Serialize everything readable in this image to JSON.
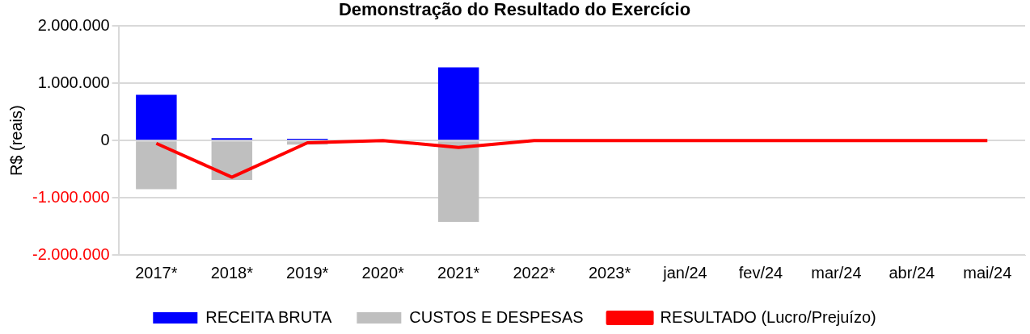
{
  "chart_data": {
    "type": "bar",
    "title": "Demonstração do Resultado do Exercício",
    "ylabel": "R$ (reais)",
    "categories": [
      "2017*",
      "2018*",
      "2019*",
      "2020*",
      "2021*",
      "2022*",
      "2023*",
      "jan/24",
      "fev/24",
      "mar/24",
      "abr/24",
      "mai/24"
    ],
    "series": [
      {
        "name": "RECEITA BRUTA",
        "color": "#0000ff",
        "values": [
          800000,
          40000,
          30000,
          0,
          1280000,
          0,
          0,
          0,
          0,
          0,
          0,
          0
        ]
      },
      {
        "name": "CUSTOS E DESPESAS",
        "color": "#bfbfbf",
        "values": [
          -850000,
          -690000,
          -70000,
          0,
          -1420000,
          0,
          0,
          0,
          0,
          0,
          0,
          0
        ]
      },
      {
        "name": "RESULTADO (Lucro/Prejuízo)",
        "type": "line",
        "color": "#ff0000",
        "values": [
          -50000,
          -640000,
          -40000,
          0,
          -120000,
          0,
          0,
          0,
          0,
          0,
          0,
          0
        ]
      }
    ],
    "stacked": true,
    "ylim": [
      -2000000,
      2000000
    ],
    "yticks": [
      {
        "value": -2000000,
        "label": "-2.000.000"
      },
      {
        "value": -1000000,
        "label": "-1.000.000"
      },
      {
        "value": 0,
        "label": "0"
      },
      {
        "value": 1000000,
        "label": "1.000.000"
      },
      {
        "value": 2000000,
        "label": "2.000.000"
      }
    ],
    "grid": "y",
    "legend": "bottom",
    "marker": "none"
  }
}
